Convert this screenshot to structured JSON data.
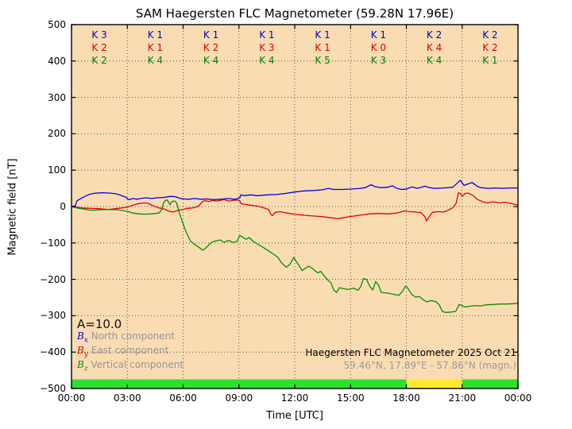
{
  "title": "SAM Haegersten FLC Magnetometer (59.28N 17.96E)",
  "axes": {
    "ylabel": "Magnetic field [nT]",
    "xlabel": "Time [UTC]",
    "yticks": [
      "500",
      "400",
      "300",
      "200",
      "100",
      "0",
      "−100",
      "−200",
      "−300",
      "−400",
      "−500"
    ],
    "xticks": [
      "00:00",
      "03:00",
      "06:00",
      "09:00",
      "12:00",
      "15:00",
      "18:00",
      "21:00",
      "00:00"
    ]
  },
  "legend": {
    "a_value": "A=10.0",
    "items": [
      {
        "sym": "B",
        "sub": "x",
        "text": " North component",
        "color": "#0000dd"
      },
      {
        "sym": "B",
        "sub": "y",
        "text": " East component",
        "color": "#dd0000"
      },
      {
        "sym": "B",
        "sub": "z",
        "text": " Vertical component",
        "color": "#009000"
      }
    ]
  },
  "annotation": {
    "line1": "Haegersten FLC Magnetometer 2025 Oct 21",
    "line2": "59.46°N, 17.89°E - 57.86°N (magn.)"
  },
  "chart_data": {
    "type": "line",
    "title": "SAM Haegersten FLC Magnetometer (59.28N 17.96E)",
    "xlabel": "Time [UTC]",
    "ylabel": "Magnetic field [nT]",
    "xlim": [
      0,
      24
    ],
    "ylim": [
      -500,
      500
    ],
    "x_unit": "hours UTC",
    "grid": true,
    "background_color": "#fadcb3",
    "xticks_hours": [
      0,
      3,
      6,
      9,
      12,
      15,
      18,
      21,
      24
    ],
    "yticks_values": [
      500,
      400,
      300,
      200,
      100,
      0,
      -100,
      -200,
      -300,
      -400,
      -500
    ],
    "k_index": {
      "interval_hours": 3,
      "rows": [
        {
          "component": "Bx",
          "color": "#0000cc",
          "values": [
            "K 3",
            "K 1",
            "K 1",
            "K 1",
            "K 1",
            "K 1",
            "K 2",
            "K 2"
          ]
        },
        {
          "component": "By",
          "color": "#dd0000",
          "values": [
            "K 2",
            "K 1",
            "K 2",
            "K 3",
            "K 1",
            "K 0",
            "K 4",
            "K 2"
          ]
        },
        {
          "component": "Bz",
          "color": "#008000",
          "values": [
            "K 2",
            "K 4",
            "K 4",
            "K 4",
            "K 5",
            "K 3",
            "K 4",
            "K 1"
          ]
        }
      ]
    },
    "a_index": 10.0,
    "activity_bar": {
      "segments": [
        {
          "from": 0,
          "to": 18,
          "color": "#2ee02e"
        },
        {
          "from": 18,
          "to": 21,
          "color": "#ffe92c"
        },
        {
          "from": 21,
          "to": 24,
          "color": "#2ee02e"
        }
      ]
    },
    "series": [
      {
        "name": "Bx North component",
        "color": "#0000e0",
        "points": [
          [
            0,
            0
          ],
          [
            0.2,
            2
          ],
          [
            0.3,
            16
          ],
          [
            0.5,
            22
          ],
          [
            0.8,
            30
          ],
          [
            1.0,
            34
          ],
          [
            1.3,
            37
          ],
          [
            1.7,
            38
          ],
          [
            2.1,
            37
          ],
          [
            2.4,
            35
          ],
          [
            2.7,
            30
          ],
          [
            2.9,
            26
          ],
          [
            3.0,
            22
          ],
          [
            3.1,
            19
          ],
          [
            3.3,
            22
          ],
          [
            3.5,
            20
          ],
          [
            3.7,
            22
          ],
          [
            4.0,
            24
          ],
          [
            4.3,
            22
          ],
          [
            4.6,
            24
          ],
          [
            5.0,
            25
          ],
          [
            5.3,
            28
          ],
          [
            5.6,
            27
          ],
          [
            5.8,
            23
          ],
          [
            6.0,
            21
          ],
          [
            6.3,
            20
          ],
          [
            6.6,
            22
          ],
          [
            7.0,
            20
          ],
          [
            7.3,
            21
          ],
          [
            7.6,
            19
          ],
          [
            8.0,
            20
          ],
          [
            8.4,
            22
          ],
          [
            8.8,
            20
          ],
          [
            9.05,
            24
          ],
          [
            9.1,
            32
          ],
          [
            9.3,
            30
          ],
          [
            9.6,
            32
          ],
          [
            10.0,
            30
          ],
          [
            10.5,
            32
          ],
          [
            11.0,
            33
          ],
          [
            11.5,
            36
          ],
          [
            12.0,
            40
          ],
          [
            12.5,
            43
          ],
          [
            13.0,
            44
          ],
          [
            13.5,
            46
          ],
          [
            13.8,
            50
          ],
          [
            14.1,
            47
          ],
          [
            14.5,
            47
          ],
          [
            15.0,
            48
          ],
          [
            15.5,
            50
          ],
          [
            15.8,
            52
          ],
          [
            16.1,
            60
          ],
          [
            16.3,
            55
          ],
          [
            16.6,
            52
          ],
          [
            17.0,
            53
          ],
          [
            17.25,
            57
          ],
          [
            17.5,
            50
          ],
          [
            17.75,
            47
          ],
          [
            18.0,
            48
          ],
          [
            18.3,
            54
          ],
          [
            18.6,
            50
          ],
          [
            19.0,
            56
          ],
          [
            19.25,
            52
          ],
          [
            19.5,
            50
          ],
          [
            20.0,
            51
          ],
          [
            20.5,
            53
          ],
          [
            20.75,
            65
          ],
          [
            20.9,
            72
          ],
          [
            21.1,
            58
          ],
          [
            21.3,
            62
          ],
          [
            21.55,
            66
          ],
          [
            21.8,
            56
          ],
          [
            22.0,
            52
          ],
          [
            22.4,
            50
          ],
          [
            22.8,
            51
          ],
          [
            23.2,
            50
          ],
          [
            23.6,
            51
          ],
          [
            24,
            51
          ]
        ]
      },
      {
        "name": "By East component",
        "color": "#e60000",
        "points": [
          [
            0,
            0
          ],
          [
            0.3,
            -2
          ],
          [
            0.6,
            -4
          ],
          [
            1.0,
            -5
          ],
          [
            1.5,
            -6
          ],
          [
            2.0,
            -8
          ],
          [
            2.5,
            -5
          ],
          [
            3.0,
            -2
          ],
          [
            3.3,
            4
          ],
          [
            3.6,
            8
          ],
          [
            3.9,
            10
          ],
          [
            4.1,
            9
          ],
          [
            4.4,
            2
          ],
          [
            4.7,
            -4
          ],
          [
            5.0,
            -7
          ],
          [
            5.2,
            -12
          ],
          [
            5.45,
            -15
          ],
          [
            5.7,
            -11
          ],
          [
            6.0,
            -8
          ],
          [
            6.2,
            -5
          ],
          [
            6.5,
            -4
          ],
          [
            6.8,
            0
          ],
          [
            6.95,
            8
          ],
          [
            7.05,
            14
          ],
          [
            7.2,
            16
          ],
          [
            7.4,
            14
          ],
          [
            7.6,
            17
          ],
          [
            7.8,
            15
          ],
          [
            8.0,
            17
          ],
          [
            8.2,
            19
          ],
          [
            8.45,
            15
          ],
          [
            8.7,
            17
          ],
          [
            8.9,
            18
          ],
          [
            9.05,
            16
          ],
          [
            9.1,
            8
          ],
          [
            9.3,
            6
          ],
          [
            9.6,
            4
          ],
          [
            10.0,
            1
          ],
          [
            10.3,
            -3
          ],
          [
            10.6,
            -8
          ],
          [
            10.7,
            -20
          ],
          [
            10.8,
            -25
          ],
          [
            10.95,
            -16
          ],
          [
            11.2,
            -14
          ],
          [
            11.5,
            -17
          ],
          [
            12.0,
            -21
          ],
          [
            12.5,
            -24
          ],
          [
            13.0,
            -26
          ],
          [
            13.5,
            -28
          ],
          [
            14.0,
            -31
          ],
          [
            14.3,
            -33
          ],
          [
            14.7,
            -30
          ],
          [
            15.2,
            -26
          ],
          [
            15.7,
            -22
          ],
          [
            16.0,
            -20
          ],
          [
            16.5,
            -19
          ],
          [
            17.0,
            -20
          ],
          [
            17.5,
            -18
          ],
          [
            17.9,
            -12
          ],
          [
            18.2,
            -14
          ],
          [
            18.5,
            -15
          ],
          [
            18.8,
            -17
          ],
          [
            19.0,
            -28
          ],
          [
            19.08,
            -40
          ],
          [
            19.2,
            -30
          ],
          [
            19.4,
            -16
          ],
          [
            19.7,
            -14
          ],
          [
            20.0,
            -15
          ],
          [
            20.25,
            -10
          ],
          [
            20.5,
            -3
          ],
          [
            20.67,
            8
          ],
          [
            20.8,
            38
          ],
          [
            20.9,
            36
          ],
          [
            21.0,
            28
          ],
          [
            21.15,
            36
          ],
          [
            21.33,
            37
          ],
          [
            21.6,
            30
          ],
          [
            21.8,
            20
          ],
          [
            22.1,
            13
          ],
          [
            22.35,
            10
          ],
          [
            22.65,
            13
          ],
          [
            23.0,
            10
          ],
          [
            23.3,
            12
          ],
          [
            23.6,
            9
          ],
          [
            24,
            4
          ]
        ]
      },
      {
        "name": "Bz Vertical component",
        "color": "#009000",
        "points": [
          [
            0,
            0
          ],
          [
            0.3,
            -4
          ],
          [
            0.7,
            -7
          ],
          [
            1.0,
            -10
          ],
          [
            1.5,
            -9
          ],
          [
            2.0,
            -8
          ],
          [
            2.5,
            -9
          ],
          [
            3.0,
            -13
          ],
          [
            3.3,
            -18
          ],
          [
            3.6,
            -20
          ],
          [
            4.0,
            -21
          ],
          [
            4.3,
            -20
          ],
          [
            4.7,
            -18
          ],
          [
            4.85,
            -8
          ],
          [
            4.95,
            10
          ],
          [
            5.05,
            17
          ],
          [
            5.15,
            18
          ],
          [
            5.3,
            5
          ],
          [
            5.4,
            14
          ],
          [
            5.55,
            15
          ],
          [
            5.65,
            10
          ],
          [
            5.8,
            -18
          ],
          [
            5.95,
            -40
          ],
          [
            6.1,
            -62
          ],
          [
            6.25,
            -80
          ],
          [
            6.4,
            -95
          ],
          [
            6.6,
            -103
          ],
          [
            6.85,
            -112
          ],
          [
            7.05,
            -120
          ],
          [
            7.2,
            -115
          ],
          [
            7.35,
            -107
          ],
          [
            7.55,
            -98
          ],
          [
            7.75,
            -94
          ],
          [
            8.0,
            -92
          ],
          [
            8.2,
            -98
          ],
          [
            8.45,
            -93
          ],
          [
            8.7,
            -99
          ],
          [
            8.9,
            -95
          ],
          [
            9.05,
            -80
          ],
          [
            9.2,
            -84
          ],
          [
            9.4,
            -90
          ],
          [
            9.55,
            -85
          ],
          [
            9.75,
            -95
          ],
          [
            10.0,
            -103
          ],
          [
            10.3,
            -112
          ],
          [
            10.6,
            -122
          ],
          [
            10.9,
            -132
          ],
          [
            11.1,
            -140
          ],
          [
            11.3,
            -155
          ],
          [
            11.55,
            -167
          ],
          [
            11.75,
            -158
          ],
          [
            11.95,
            -140
          ],
          [
            12.1,
            -152
          ],
          [
            12.3,
            -168
          ],
          [
            12.4,
            -176
          ],
          [
            12.55,
            -170
          ],
          [
            12.75,
            -164
          ],
          [
            12.95,
            -170
          ],
          [
            13.1,
            -177
          ],
          [
            13.25,
            -182
          ],
          [
            13.4,
            -178
          ],
          [
            13.6,
            -192
          ],
          [
            13.8,
            -203
          ],
          [
            13.95,
            -210
          ],
          [
            14.1,
            -230
          ],
          [
            14.25,
            -236
          ],
          [
            14.4,
            -223
          ],
          [
            14.65,
            -226
          ],
          [
            14.9,
            -228
          ],
          [
            15.15,
            -224
          ],
          [
            15.4,
            -230
          ],
          [
            15.55,
            -220
          ],
          [
            15.7,
            -198
          ],
          [
            15.85,
            -200
          ],
          [
            16.05,
            -220
          ],
          [
            16.2,
            -229
          ],
          [
            16.35,
            -206
          ],
          [
            16.5,
            -216
          ],
          [
            16.65,
            -236
          ],
          [
            17.0,
            -238
          ],
          [
            17.3,
            -241
          ],
          [
            17.6,
            -244
          ],
          [
            17.8,
            -232
          ],
          [
            17.95,
            -219
          ],
          [
            18.05,
            -222
          ],
          [
            18.3,
            -242
          ],
          [
            18.5,
            -249
          ],
          [
            18.7,
            -247
          ],
          [
            18.9,
            -256
          ],
          [
            19.1,
            -262
          ],
          [
            19.35,
            -258
          ],
          [
            19.6,
            -262
          ],
          [
            19.77,
            -270
          ],
          [
            19.93,
            -288
          ],
          [
            20.1,
            -291
          ],
          [
            20.4,
            -290
          ],
          [
            20.65,
            -288
          ],
          [
            20.85,
            -269
          ],
          [
            21.0,
            -273
          ],
          [
            21.2,
            -276
          ],
          [
            21.4,
            -274
          ],
          [
            21.7,
            -272
          ],
          [
            22.0,
            -273
          ],
          [
            22.3,
            -270
          ],
          [
            22.7,
            -269
          ],
          [
            23.0,
            -268
          ],
          [
            23.4,
            -268
          ],
          [
            23.7,
            -267
          ],
          [
            24,
            -266
          ]
        ]
      }
    ]
  }
}
